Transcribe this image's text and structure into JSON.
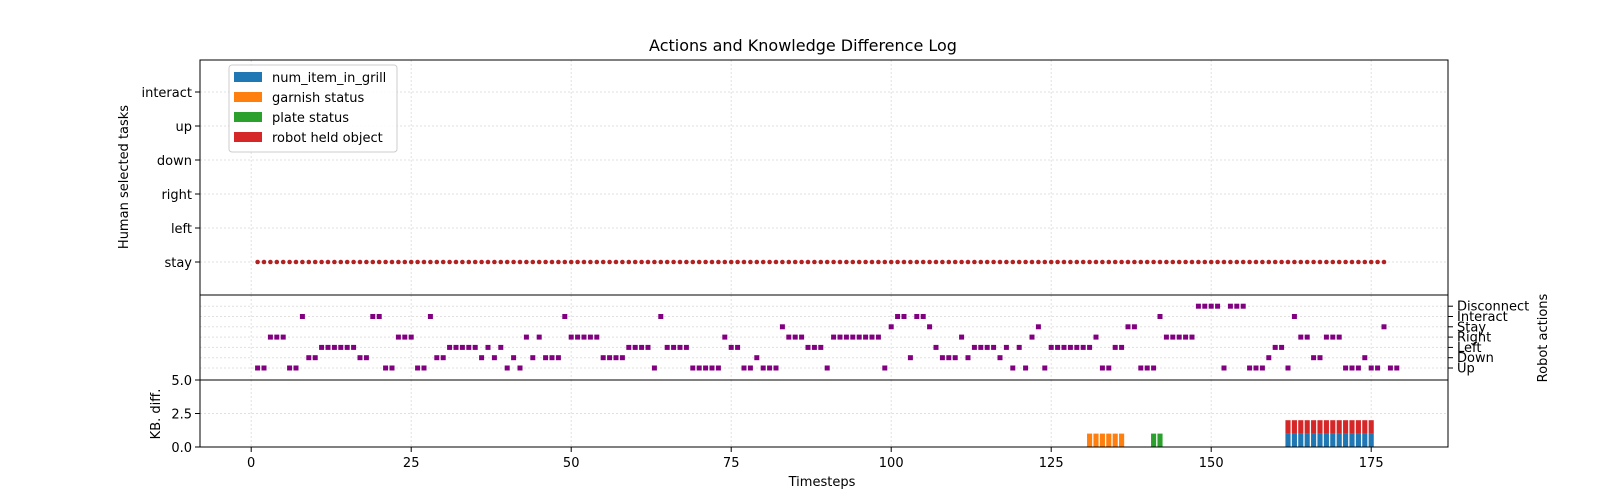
{
  "chart_data": {
    "type": "scatter",
    "title": "Actions and Knowledge Difference Log",
    "xlabel": "Timesteps",
    "xlim": [
      -8,
      187
    ],
    "xticks": [
      0,
      25,
      50,
      75,
      100,
      125,
      150,
      175
    ],
    "panels": [
      {
        "id": "human",
        "type": "scatter",
        "ylabel": "Human selected tasks",
        "categories": [
          "stay",
          "left",
          "right",
          "down",
          "up",
          "interact"
        ],
        "series": [
          {
            "color": "#b22222",
            "x_start": 1,
            "x_end": 177,
            "category": "stay"
          }
        ]
      },
      {
        "id": "robot",
        "type": "scatter",
        "ylabel": "Robot actions",
        "categories": [
          "Up",
          "Down",
          "Left",
          "Right",
          "Stay",
          "Interact",
          "Disconnect"
        ],
        "color": "#800080",
        "points": [
          [
            1,
            0
          ],
          [
            2,
            0
          ],
          [
            3,
            3
          ],
          [
            4,
            3
          ],
          [
            5,
            3
          ],
          [
            6,
            0
          ],
          [
            7,
            0
          ],
          [
            8,
            5
          ],
          [
            9,
            1
          ],
          [
            10,
            1
          ],
          [
            11,
            2
          ],
          [
            12,
            2
          ],
          [
            13,
            2
          ],
          [
            14,
            2
          ],
          [
            15,
            2
          ],
          [
            16,
            2
          ],
          [
            17,
            1
          ],
          [
            18,
            1
          ],
          [
            19,
            5
          ],
          [
            20,
            5
          ],
          [
            21,
            0
          ],
          [
            22,
            0
          ],
          [
            23,
            3
          ],
          [
            24,
            3
          ],
          [
            25,
            3
          ],
          [
            26,
            0
          ],
          [
            27,
            0
          ],
          [
            28,
            5
          ],
          [
            29,
            1
          ],
          [
            30,
            1
          ],
          [
            31,
            2
          ],
          [
            32,
            2
          ],
          [
            33,
            2
          ],
          [
            34,
            2
          ],
          [
            35,
            2
          ],
          [
            36,
            1
          ],
          [
            37,
            2
          ],
          [
            38,
            1
          ],
          [
            39,
            2
          ],
          [
            40,
            0
          ],
          [
            41,
            1
          ],
          [
            42,
            0
          ],
          [
            43,
            3
          ],
          [
            44,
            1
          ],
          [
            45,
            3
          ],
          [
            46,
            1
          ],
          [
            47,
            1
          ],
          [
            48,
            1
          ],
          [
            49,
            5
          ],
          [
            50,
            3
          ],
          [
            51,
            3
          ],
          [
            52,
            3
          ],
          [
            53,
            3
          ],
          [
            54,
            3
          ],
          [
            55,
            1
          ],
          [
            56,
            1
          ],
          [
            57,
            1
          ],
          [
            58,
            1
          ],
          [
            59,
            2
          ],
          [
            60,
            2
          ],
          [
            61,
            2
          ],
          [
            62,
            2
          ],
          [
            63,
            0
          ],
          [
            64,
            5
          ],
          [
            65,
            2
          ],
          [
            66,
            2
          ],
          [
            67,
            2
          ],
          [
            68,
            2
          ],
          [
            69,
            0
          ],
          [
            70,
            0
          ],
          [
            71,
            0
          ],
          [
            72,
            0
          ],
          [
            73,
            0
          ],
          [
            74,
            3
          ],
          [
            75,
            2
          ],
          [
            76,
            2
          ],
          [
            77,
            0
          ],
          [
            78,
            0
          ],
          [
            79,
            1
          ],
          [
            80,
            0
          ],
          [
            81,
            0
          ],
          [
            82,
            0
          ],
          [
            83,
            4
          ],
          [
            84,
            3
          ],
          [
            85,
            3
          ],
          [
            86,
            3
          ],
          [
            87,
            2
          ],
          [
            88,
            2
          ],
          [
            89,
            2
          ],
          [
            90,
            0
          ],
          [
            91,
            3
          ],
          [
            92,
            3
          ],
          [
            93,
            3
          ],
          [
            94,
            3
          ],
          [
            95,
            3
          ],
          [
            96,
            3
          ],
          [
            97,
            3
          ],
          [
            98,
            3
          ],
          [
            99,
            0
          ],
          [
            100,
            4
          ],
          [
            101,
            5
          ],
          [
            102,
            5
          ],
          [
            103,
            1
          ],
          [
            104,
            5
          ],
          [
            105,
            5
          ],
          [
            106,
            4
          ],
          [
            107,
            2
          ],
          [
            108,
            1
          ],
          [
            109,
            1
          ],
          [
            110,
            1
          ],
          [
            111,
            3
          ],
          [
            112,
            1
          ],
          [
            113,
            2
          ],
          [
            114,
            2
          ],
          [
            115,
            2
          ],
          [
            116,
            2
          ],
          [
            117,
            1
          ],
          [
            118,
            2
          ],
          [
            119,
            0
          ],
          [
            120,
            2
          ],
          [
            121,
            0
          ],
          [
            122,
            3
          ],
          [
            123,
            4
          ],
          [
            124,
            0
          ],
          [
            125,
            2
          ],
          [
            126,
            2
          ],
          [
            127,
            2
          ],
          [
            128,
            2
          ],
          [
            129,
            2
          ],
          [
            130,
            2
          ],
          [
            131,
            2
          ],
          [
            132,
            3
          ],
          [
            133,
            0
          ],
          [
            134,
            0
          ],
          [
            135,
            2
          ],
          [
            136,
            2
          ],
          [
            137,
            4
          ],
          [
            138,
            4
          ],
          [
            139,
            0
          ],
          [
            140,
            0
          ],
          [
            141,
            0
          ],
          [
            142,
            5
          ],
          [
            143,
            3
          ],
          [
            144,
            3
          ],
          [
            145,
            3
          ],
          [
            146,
            3
          ],
          [
            147,
            3
          ],
          [
            148,
            6
          ],
          [
            149,
            6
          ],
          [
            150,
            6
          ],
          [
            151,
            6
          ],
          [
            152,
            0
          ],
          [
            153,
            6
          ],
          [
            154,
            6
          ],
          [
            155,
            6
          ],
          [
            156,
            0
          ],
          [
            157,
            0
          ],
          [
            158,
            0
          ],
          [
            159,
            1
          ],
          [
            160,
            2
          ],
          [
            161,
            2
          ],
          [
            162,
            0
          ],
          [
            163,
            5
          ],
          [
            164,
            3
          ],
          [
            165,
            3
          ],
          [
            166,
            1
          ],
          [
            167,
            1
          ],
          [
            168,
            3
          ],
          [
            169,
            3
          ],
          [
            170,
            3
          ],
          [
            171,
            0
          ],
          [
            172,
            0
          ],
          [
            173,
            0
          ],
          [
            174,
            1
          ],
          [
            175,
            0
          ],
          [
            176,
            0
          ],
          [
            177,
            4
          ],
          [
            178,
            0
          ],
          [
            179,
            0
          ]
        ]
      },
      {
        "id": "kb",
        "type": "bar",
        "stacked": true,
        "ylabel": "KB. diff.",
        "ylim": [
          0,
          5.0
        ],
        "yticks": [
          "0.0",
          "2.5",
          "5.0"
        ],
        "series": [
          {
            "name": "num_item_in_grill",
            "color": "#1f77b4",
            "x": [
              162,
              163,
              164,
              165,
              166,
              167,
              168,
              169,
              170,
              171,
              172,
              173,
              174,
              175
            ],
            "values": [
              1,
              1,
              1,
              1,
              1,
              1,
              1,
              1,
              1,
              1,
              1,
              1,
              1,
              1
            ]
          },
          {
            "name": "garnish status",
            "color": "#ff7f0e",
            "x": [
              131,
              132,
              133,
              134,
              135,
              136
            ],
            "values": [
              1,
              1,
              1,
              1,
              1,
              1
            ]
          },
          {
            "name": "plate status",
            "color": "#2ca02c",
            "x": [
              141,
              142
            ],
            "values": [
              1,
              1
            ]
          },
          {
            "name": "robot held object",
            "color": "#d62728",
            "x": [
              162,
              163,
              164,
              165,
              166,
              167,
              168,
              169,
              170,
              171,
              172,
              173,
              174,
              175
            ],
            "values": [
              1,
              1,
              1,
              1,
              1,
              1,
              1,
              1,
              1,
              1,
              1,
              1,
              1,
              1
            ]
          }
        ]
      }
    ],
    "legend": "top-left",
    "grid": true
  }
}
